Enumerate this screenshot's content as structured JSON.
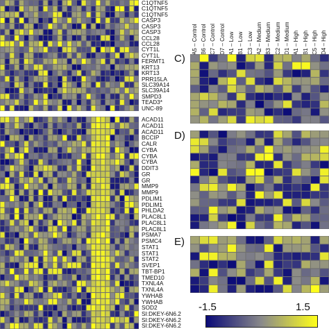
{
  "chart_data": [
    {
      "type": "heatmap",
      "panel": "top-left",
      "rows": [
        "C1QTNF5",
        "C1QTNF5",
        "C1QTNF5",
        "CASP3",
        "CASP3",
        "CASP3",
        "CCL28",
        "CCL28",
        "CYT1L",
        "CYT1L",
        "FERMT1",
        "KRT13",
        "KRT13",
        "PRR15LA",
        "SLC39A14",
        "SLC39A14",
        "SMPD3",
        "TEAD3*",
        "UNC-89"
      ],
      "n_cols": 29
    },
    {
      "type": "heatmap",
      "panel": "bottom-left",
      "rows": [
        "ACAD11",
        "ACAD11",
        "ACAD11",
        "BCCIP",
        "CALR",
        "CYBA",
        "CYBA",
        "CYBA",
        "DDIT3",
        "GR",
        "GR",
        "MMP9",
        "MMP9",
        "PDLIM1",
        "PDLIM1",
        "PHLDA2",
        "PLAC8L1",
        "PLAC8L1",
        "PLAC8L1",
        "PSMA7",
        "PSMC4",
        "STAT1",
        "STAT1",
        "STAT2",
        "SVEP1",
        "TBT-BP1",
        "TMED10",
        "TXNL4A",
        "TXNL4A",
        "YWHAB",
        "YWHAB",
        "SOD2",
        "SI:DKEY-6N6.2",
        "SI:DKEY-6N6.2",
        "SI:DKEY-6N6.2"
      ],
      "n_cols": 29
    },
    {
      "type": "heatmap",
      "panel": "C)",
      "columns": [
        "A5 – Control",
        "B6 – Control",
        "C7 – Control",
        "D7 – Control",
        "A1 – Low",
        "B1 – Low",
        "C3 – Low",
        "A2 – Medium",
        "B3 – Medium",
        "C2 – Medium",
        "D1 – Medium",
        "A1 – High",
        "B1 – High",
        "C5 – High",
        "D4 – High"
      ]
    },
    {
      "type": "heatmap",
      "panel": "D)",
      "columns": [
        "A5 – Control",
        "B6 – Control",
        "C7 – Control",
        "D7 – Control",
        "A1 – Low",
        "B1 – Low",
        "C3 – Low",
        "A2 – Medium",
        "B3 – Medium",
        "C2 – Medium",
        "D1 – Medium",
        "A1 – High",
        "B1 – High",
        "C5 – High",
        "D4 – High"
      ]
    },
    {
      "type": "heatmap",
      "panel": "E)",
      "columns": [
        "A5 – Control",
        "B6 – Control",
        "C7 – Control",
        "D7 – Control",
        "A1 – Low",
        "B1 – Low",
        "C3 – Low",
        "A2 – Medium",
        "B3 – Medium",
        "C2 – Medium",
        "D1 – Medium",
        "A1 – High",
        "B1 – High",
        "C5 – High",
        "D4 – High"
      ]
    }
  ],
  "panels": {
    "c_tag": "C)",
    "d_tag": "D)",
    "e_tag": "E)"
  },
  "colorbar": {
    "min_label": "-1.5",
    "max_label": "1.5",
    "min": -1.5,
    "max": 1.5,
    "colors": [
      "#0a0a78",
      "#8a8a8a",
      "#ffff1a"
    ]
  }
}
